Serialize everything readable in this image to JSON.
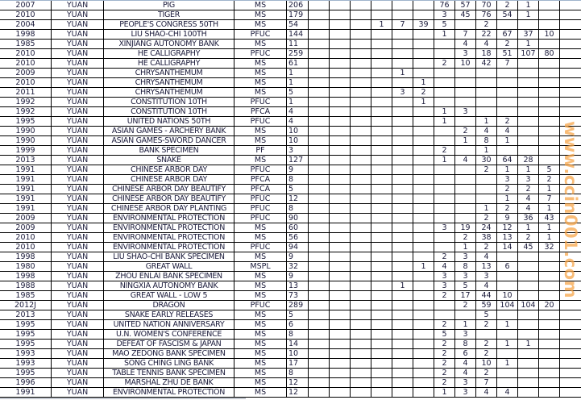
{
  "watermark": "www.ccin001.com",
  "rows": [
    {
      "year": "2007",
      "currency": "YUAN",
      "name": "PIG",
      "grade": "MS",
      "total": "206",
      "counts": [
        "",
        "",
        "",
        "",
        "",
        "",
        "76",
        "57",
        "70",
        "2",
        "1",
        "",
        ""
      ]
    },
    {
      "year": "2010",
      "currency": "YUAN",
      "name": "TIGER",
      "grade": "MS",
      "total": "179",
      "counts": [
        "",
        "",
        "",
        "",
        "",
        "",
        "3",
        "45",
        "76",
        "54",
        "1",
        "",
        ""
      ]
    },
    {
      "year": "2004",
      "currency": "YUAN",
      "name": "PEOPLE'S CONGRESS 50TH",
      "grade": "MS",
      "total": "54",
      "counts": [
        "",
        "",
        "",
        "1",
        "7",
        "39",
        "5",
        "",
        "2",
        "",
        "",
        "",
        ""
      ]
    },
    {
      "year": "1998",
      "currency": "YUAN",
      "name": "LIU SHAO-CHI 100TH",
      "grade": "PFUC",
      "total": "144",
      "counts": [
        "",
        "",
        "",
        "",
        "",
        "",
        "1",
        "7",
        "22",
        "67",
        "37",
        "10",
        ""
      ]
    },
    {
      "year": "1985",
      "currency": "YUAN",
      "name": "XINJIANG AUTONOMY BANK",
      "grade": "MS",
      "total": "11",
      "counts": [
        "",
        "",
        "",
        "",
        "",
        "",
        "",
        "4",
        "4",
        "2",
        "1",
        "",
        ""
      ]
    },
    {
      "year": "2010",
      "currency": "YUAN",
      "name": "HE CALLIGRAPHY",
      "grade": "PFUC",
      "total": "259",
      "counts": [
        "",
        "",
        "",
        "",
        "",
        "",
        "",
        "3",
        "18",
        "51",
        "107",
        "80",
        ""
      ]
    },
    {
      "year": "2010",
      "currency": "YUAN",
      "name": "HE CALLIGRAPHY",
      "grade": "MS",
      "total": "61",
      "counts": [
        "",
        "",
        "",
        "",
        "",
        "",
        "2",
        "10",
        "42",
        "7",
        "",
        "",
        ""
      ]
    },
    {
      "year": "2009",
      "currency": "YUAN",
      "name": "CHRYSANTHEMUM",
      "grade": "MS",
      "total": "1",
      "counts": [
        "",
        "",
        "",
        "",
        "1",
        "",
        "",
        "",
        "",
        "",
        "",
        "",
        ""
      ]
    },
    {
      "year": "2010",
      "currency": "YUAN",
      "name": "CHRYSANTHEMUM",
      "grade": "MS",
      "total": "1",
      "counts": [
        "",
        "",
        "",
        "",
        "",
        "1",
        "",
        "",
        "",
        "",
        "",
        "",
        ""
      ]
    },
    {
      "year": "2011",
      "currency": "YUAN",
      "name": "CHRYSANTHEMUM",
      "grade": "MS",
      "total": "5",
      "counts": [
        "",
        "",
        "",
        "",
        "3",
        "2",
        "",
        "",
        "",
        "",
        "",
        "",
        ""
      ]
    },
    {
      "year": "1992",
      "currency": "YUAN",
      "name": "CONSTITUTION 10TH",
      "grade": "PFUC",
      "total": "1",
      "counts": [
        "",
        "",
        "",
        "",
        "",
        "1",
        "",
        "",
        "",
        "",
        "",
        "",
        ""
      ]
    },
    {
      "year": "1992",
      "currency": "YUAN",
      "name": "CONSTITUTION 10TH",
      "grade": "PFCA",
      "total": "4",
      "counts": [
        "",
        "",
        "",
        "",
        "",
        "",
        "1",
        "3",
        "",
        "",
        "",
        "",
        ""
      ]
    },
    {
      "year": "1995",
      "currency": "YUAN",
      "name": "UNITED NATIONS 50TH",
      "grade": "PFUC",
      "total": "4",
      "counts": [
        "",
        "",
        "",
        "",
        "",
        "",
        "1",
        "",
        "1",
        "2",
        "",
        "",
        ""
      ]
    },
    {
      "year": "1990",
      "currency": "YUAN",
      "name": "ASIAN GAMES - ARCHERY BANK",
      "grade": "MS",
      "total": "10",
      "counts": [
        "",
        "",
        "",
        "",
        "",
        "",
        "",
        "2",
        "4",
        "4",
        "",
        "",
        ""
      ]
    },
    {
      "year": "1990",
      "currency": "YUAN",
      "name": "ASIAN GAMES-SWORD DANCER",
      "grade": "MS",
      "total": "10",
      "counts": [
        "",
        "",
        "",
        "",
        "",
        "",
        "",
        "1",
        "8",
        "1",
        "",
        "",
        ""
      ]
    },
    {
      "year": "1999",
      "currency": "YUAN",
      "name": "BANK SPECIMEN",
      "grade": "PF",
      "total": "3",
      "counts": [
        "",
        "",
        "",
        "",
        "",
        "",
        "2",
        "",
        "1",
        "",
        "",
        "",
        ""
      ]
    },
    {
      "year": "2013",
      "currency": "YUAN",
      "name": "SNAKE",
      "grade": "MS",
      "total": "127",
      "counts": [
        "",
        "",
        "",
        "",
        "",
        "",
        "1",
        "4",
        "30",
        "64",
        "28",
        "",
        ""
      ]
    },
    {
      "year": "1991",
      "currency": "YUAN",
      "name": "CHINESE ARBOR DAY",
      "grade": "PFUC",
      "total": "9",
      "counts": [
        "",
        "",
        "",
        "",
        "",
        "",
        "",
        "",
        "2",
        "1",
        "1",
        "5",
        ""
      ]
    },
    {
      "year": "1991",
      "currency": "YUAN",
      "name": "CHINESE ARBOR DAY",
      "grade": "PFCA",
      "total": "8",
      "counts": [
        "",
        "",
        "",
        "",
        "",
        "",
        "",
        "",
        "",
        "3",
        "3",
        "2",
        ""
      ]
    },
    {
      "year": "1991",
      "currency": "YUAN",
      "name": "CHINESE ARBOR DAY BEAUTIFY",
      "grade": "PFCA",
      "total": "5",
      "counts": [
        "",
        "",
        "",
        "",
        "",
        "",
        "",
        "",
        "",
        "2",
        "2",
        "1",
        ""
      ]
    },
    {
      "year": "1991",
      "currency": "YUAN",
      "name": "CHINESE ARBOR DAY BEAUTIFY",
      "grade": "PFUC",
      "total": "12",
      "counts": [
        "",
        "",
        "",
        "",
        "",
        "",
        "",
        "",
        "",
        "1",
        "4",
        "7",
        ""
      ]
    },
    {
      "year": "1991",
      "currency": "YUAN",
      "name": "CHINESE ARBOR DAY PLANTING",
      "grade": "PFUC",
      "total": "8",
      "counts": [
        "",
        "",
        "",
        "",
        "",
        "",
        "",
        "",
        "1",
        "2",
        "4",
        "1",
        ""
      ]
    },
    {
      "year": "2009",
      "currency": "YUAN",
      "name": "ENVIRONMENTAL PROTECTION",
      "grade": "PFUC",
      "total": "90",
      "counts": [
        "",
        "",
        "",
        "",
        "",
        "",
        "",
        "",
        "2",
        "9",
        "36",
        "43",
        ""
      ]
    },
    {
      "year": "2009",
      "currency": "YUAN",
      "name": "ENVIRONMENTAL PROTECTION",
      "grade": "MS",
      "total": "60",
      "counts": [
        "",
        "",
        "",
        "",
        "",
        "",
        "3",
        "19",
        "24",
        "12",
        "1",
        "1",
        ""
      ]
    },
    {
      "year": "2010",
      "currency": "YUAN",
      "name": "ENVIRONMENTAL PROTECTION",
      "grade": "MS",
      "total": "56",
      "counts": [
        "",
        "",
        "",
        "",
        "",
        "",
        "",
        "2",
        "38",
        "13",
        "2",
        "1",
        ""
      ]
    },
    {
      "year": "2010",
      "currency": "YUAN",
      "name": "ENVIRONMENTAL PROTECTION",
      "grade": "PFUC",
      "total": "94",
      "counts": [
        "",
        "",
        "",
        "",
        "",
        "",
        "",
        "1",
        "2",
        "14",
        "45",
        "32",
        ""
      ]
    },
    {
      "year": "1998",
      "currency": "YUAN",
      "name": "LIU SHAO-CHI BANK SPECIMEN",
      "grade": "MS",
      "total": "9",
      "counts": [
        "",
        "",
        "",
        "",
        "",
        "",
        "2",
        "3",
        "4",
        "",
        "",
        "",
        ""
      ]
    },
    {
      "year": "1980",
      "currency": "YUAN",
      "name": "GREAT WALL",
      "grade": "MSPL",
      "total": "32",
      "counts": [
        "",
        "",
        "",
        "",
        "",
        "1",
        "4",
        "8",
        "13",
        "6",
        "",
        "",
        ""
      ]
    },
    {
      "year": "1998",
      "currency": "YUAN",
      "name": "ZHOU ENLAI BANK SPECIMEN",
      "grade": "MS",
      "total": "9",
      "counts": [
        "",
        "",
        "",
        "",
        "",
        "",
        "3",
        "3",
        "3",
        "",
        "",
        "",
        ""
      ]
    },
    {
      "year": "1988",
      "currency": "YUAN",
      "name": "NINGXIA AUTONOMY BANK",
      "grade": "MS",
      "total": "13",
      "counts": [
        "",
        "",
        "",
        "",
        "1",
        "",
        "3",
        "5",
        "4",
        "",
        "",
        "",
        ""
      ]
    },
    {
      "year": "1985",
      "currency": "YUAN",
      "name": "GREAT WALL - LOW 5",
      "grade": "MS",
      "total": "73",
      "counts": [
        "",
        "",
        "",
        "",
        "",
        "",
        "2",
        "17",
        "44",
        "10",
        "",
        "",
        ""
      ]
    },
    {
      "year": "2012J",
      "currency": "YUAN",
      "name": "DRAGON",
      "grade": "PFUC",
      "total": "289",
      "counts": [
        "",
        "",
        "",
        "",
        "",
        "",
        "",
        "2",
        "59",
        "104",
        "104",
        "20",
        ""
      ]
    },
    {
      "year": "2013",
      "currency": "YUAN",
      "name": "SNAKE EARLY RELEASES",
      "grade": "MS",
      "total": "5",
      "counts": [
        "",
        "",
        "",
        "",
        "",
        "",
        "",
        "",
        "5",
        "",
        "",
        "",
        ""
      ]
    },
    {
      "year": "1995",
      "currency": "YUAN",
      "name": "UNITED NATION ANNIVERSARY",
      "grade": "MS",
      "total": "6",
      "counts": [
        "",
        "",
        "",
        "",
        "",
        "",
        "2",
        "1",
        "2",
        "1",
        "",
        "",
        ""
      ]
    },
    {
      "year": "1995",
      "currency": "YUAN",
      "name": "U.N. WOMEN'S CONFERENCE",
      "grade": "MS",
      "total": "8",
      "counts": [
        "",
        "",
        "",
        "",
        "",
        "",
        "5",
        "3",
        "",
        "",
        "",
        "",
        ""
      ]
    },
    {
      "year": "1995",
      "currency": "YUAN",
      "name": "DEFEAT OF FASCISM & JAPAN",
      "grade": "MS",
      "total": "14",
      "counts": [
        "",
        "",
        "",
        "",
        "",
        "",
        "2",
        "8",
        "2",
        "1",
        "1",
        "",
        ""
      ]
    },
    {
      "year": "1993",
      "currency": "YUAN",
      "name": "MAO ZEDONG BANK SPECIMEN",
      "grade": "MS",
      "total": "10",
      "counts": [
        "",
        "",
        "",
        "",
        "",
        "",
        "2",
        "6",
        "2",
        "",
        "",
        "",
        ""
      ]
    },
    {
      "year": "1993",
      "currency": "YUAN",
      "name": "SONG CHING LING BANK",
      "grade": "MS",
      "total": "17",
      "counts": [
        "",
        "",
        "",
        "",
        "",
        "",
        "2",
        "4",
        "10",
        "1",
        "",
        "",
        ""
      ]
    },
    {
      "year": "1995",
      "currency": "YUAN",
      "name": "TABLE TENNIS BANK SPECIMEN",
      "grade": "MS",
      "total": "8",
      "counts": [
        "",
        "",
        "",
        "",
        "",
        "",
        "2",
        "4",
        "2",
        "",
        "",
        "",
        ""
      ]
    },
    {
      "year": "1996",
      "currency": "YUAN",
      "name": "MARSHAL ZHU DE BANK",
      "grade": "MS",
      "total": "12",
      "counts": [
        "",
        "",
        "",
        "",
        "",
        "",
        "2",
        "3",
        "7",
        "",
        "",
        "",
        ""
      ]
    },
    {
      "year": "1991",
      "currency": "YUAN",
      "name": "ENVIRONMENTAL PROTECTION",
      "grade": "MS",
      "total": "12",
      "counts": [
        "",
        "",
        "",
        "",
        "",
        "",
        "1",
        "3",
        "4",
        "4",
        "",
        "",
        ""
      ]
    }
  ]
}
